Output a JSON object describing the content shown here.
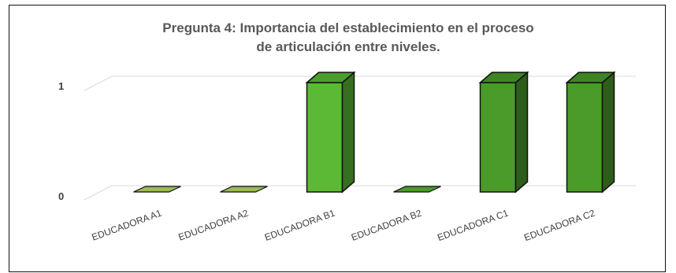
{
  "chart_data": {
    "type": "bar",
    "title_lines": [
      "Pregunta 4: Importancia del establecimiento en el proceso",
      "de articulación  entre niveles."
    ],
    "categories": [
      "EDUCADORA A1",
      "EDUCADORA A2",
      "EDUCADORA B1",
      "EDUCADORA B2",
      "EDUCADORA C1",
      "EDUCADORA C2"
    ],
    "values": [
      0,
      0,
      1,
      0,
      1,
      1
    ],
    "yticks": [
      "0",
      "1"
    ],
    "ylim": [
      0,
      1
    ],
    "grid": true,
    "legend": "none",
    "colors": {
      "A1": "#9bbb59",
      "A2": "#9bbb59",
      "B1": "#5bb935",
      "B2": "#4a9b2a",
      "C1": "#4a9b2a",
      "C2": "#4a9b2a"
    }
  }
}
